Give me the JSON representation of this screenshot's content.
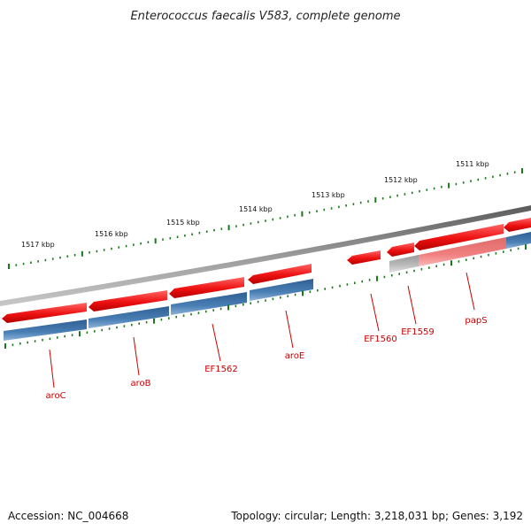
{
  "title": "Enterococcus faecalis V583, complete genome",
  "footer": {
    "accession": "Accession: NC_004668",
    "summary": "Topology: circular; Length: 3,218,031 bp; Genes: 3,192"
  },
  "ruler_labels": [
    "1517 kbp",
    "1516 kbp",
    "1515 kbp",
    "1514 kbp",
    "1513 kbp",
    "1512 kbp",
    "1511 kbp"
  ],
  "gene_labels": [
    "aroC",
    "aroB",
    "EF1562",
    "aroE",
    "EF1560",
    "EF1559",
    "papS"
  ],
  "colors": {
    "backbone": "#7a7a7a",
    "cds_red": "#ee1111",
    "cds_blue": "#4a7fb5",
    "cds_pink": "#f08080",
    "cds_gray": "#bdbdbd",
    "tick": "#1a7a1a",
    "label": "#cc0000"
  }
}
